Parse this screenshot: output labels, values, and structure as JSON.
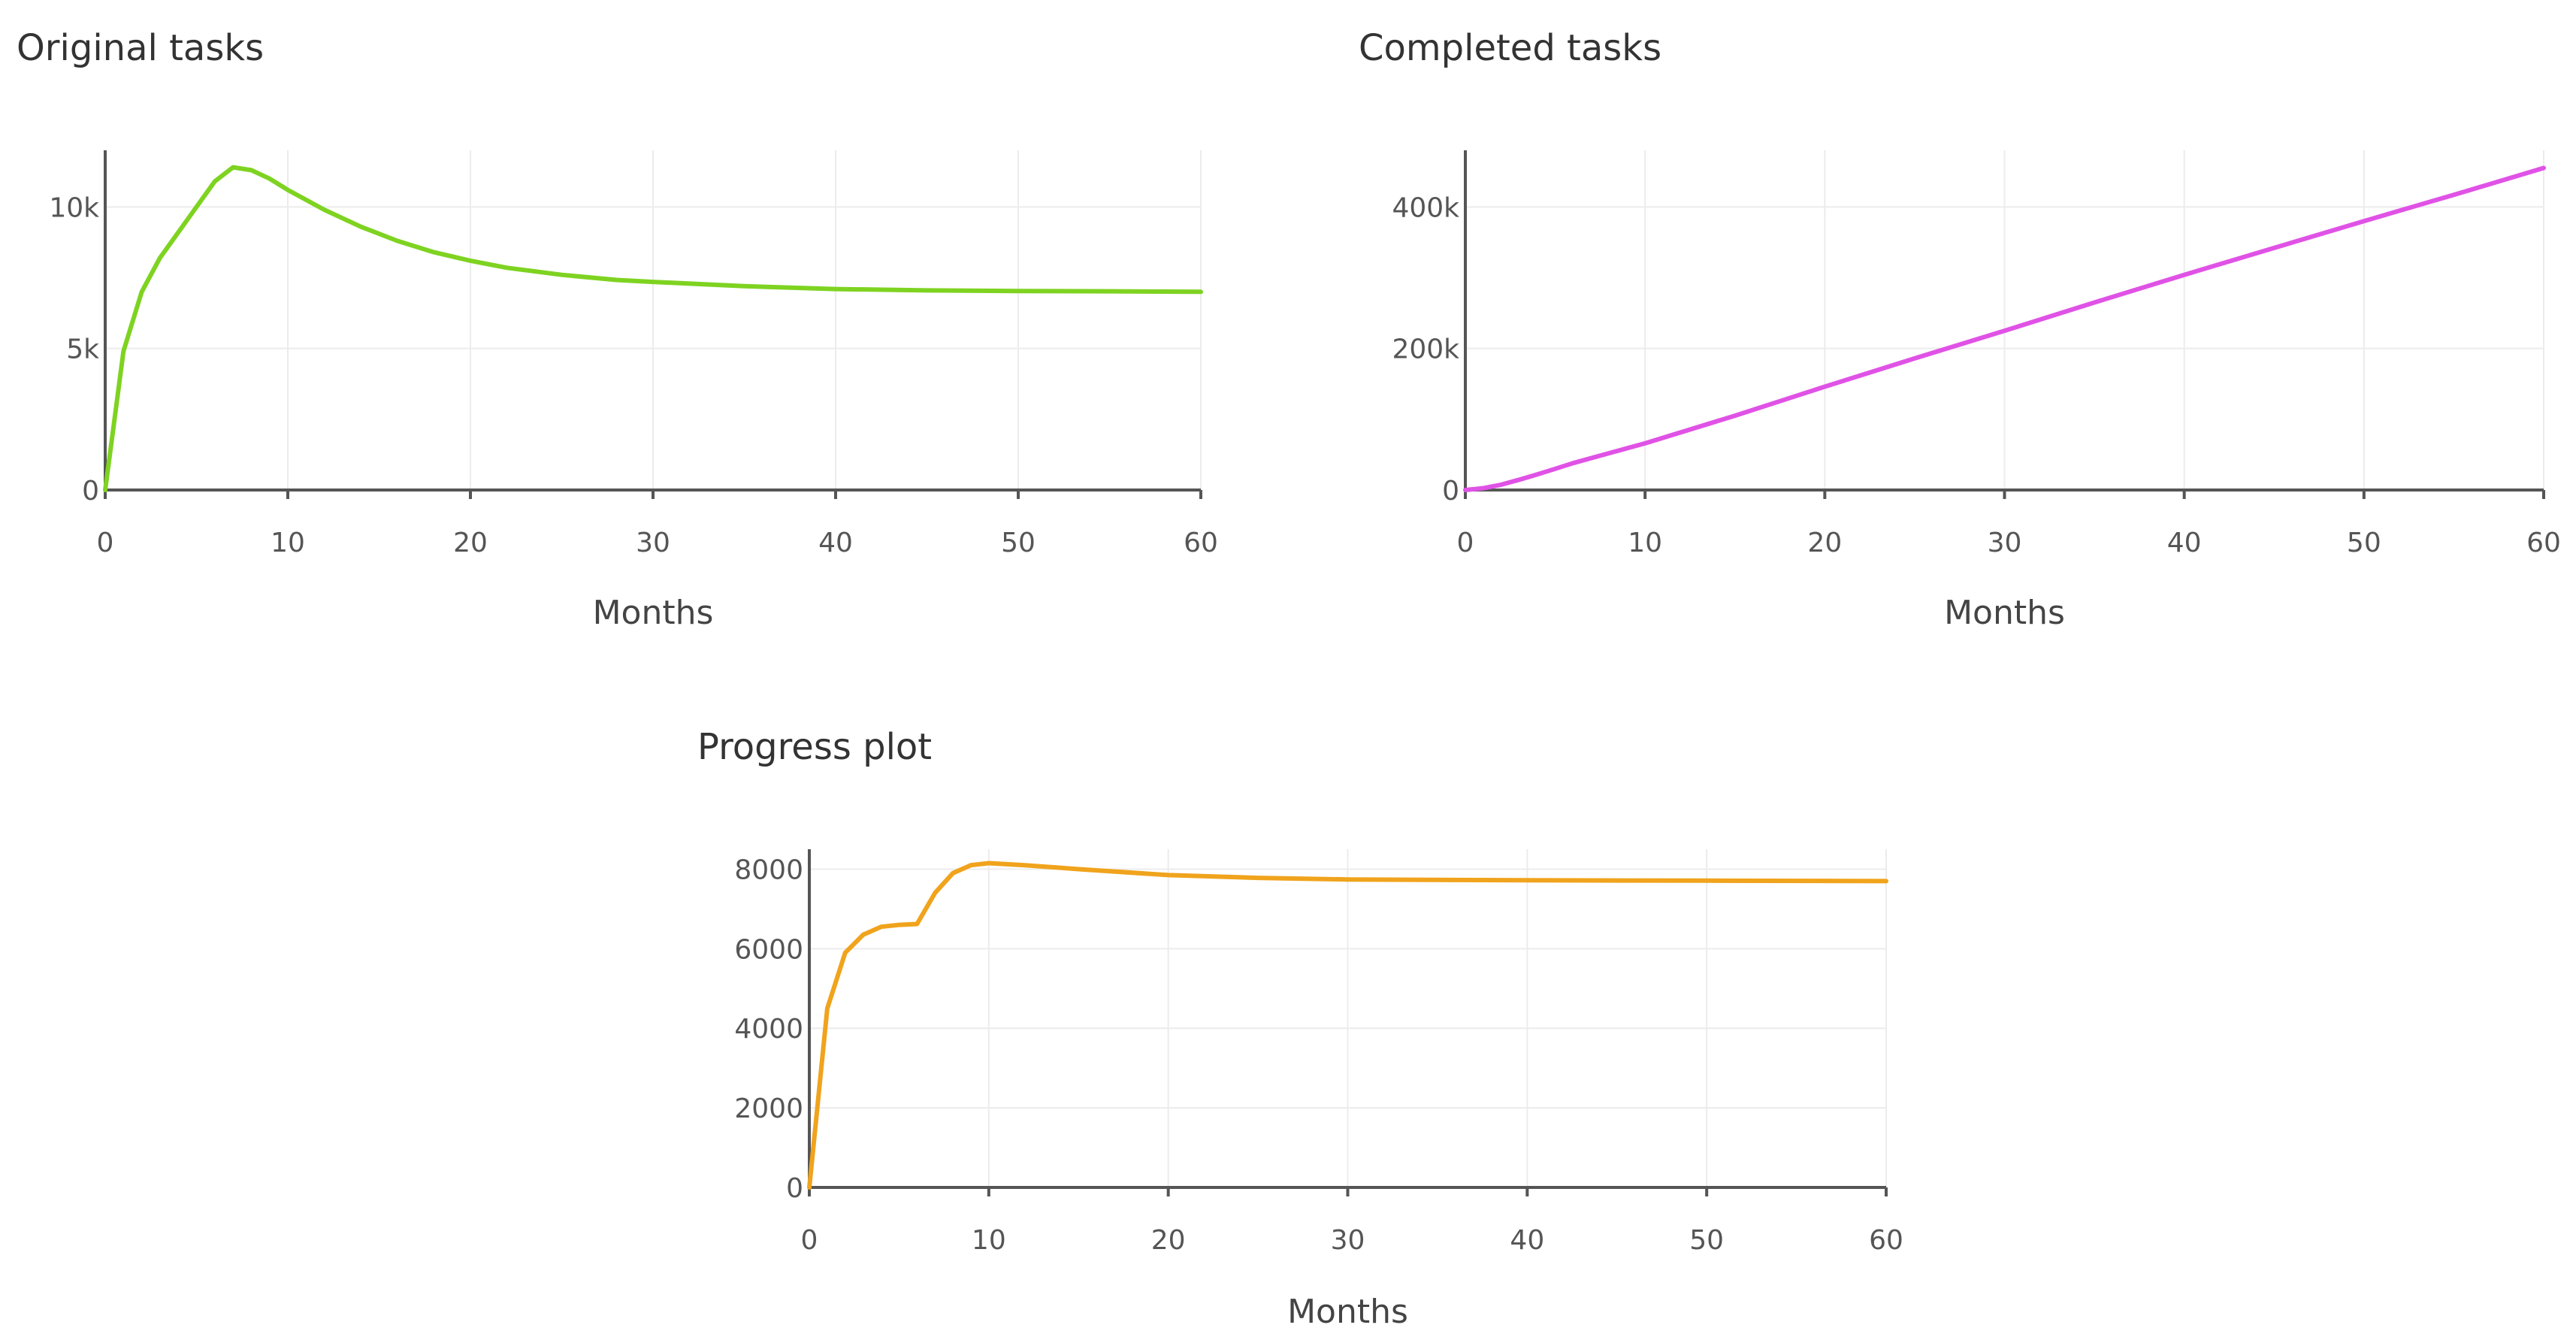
{
  "chart_data": [
    {
      "type": "line",
      "title": "Original tasks",
      "xlabel": "Months",
      "ylabel": "",
      "xlim": [
        0,
        60
      ],
      "ylim": [
        0,
        12000
      ],
      "xticks": [
        0,
        10,
        20,
        30,
        40,
        50,
        60
      ],
      "yticks": [
        0,
        5000,
        10000
      ],
      "yticklabels": [
        "0",
        "5k",
        "10k"
      ],
      "grid": true,
      "color": "#7ed321",
      "series": [
        {
          "x": [
            0,
            1,
            2,
            3,
            4,
            5,
            6,
            7,
            8,
            9,
            10,
            12,
            14,
            16,
            18,
            20,
            22,
            25,
            28,
            30,
            35,
            40,
            45,
            50,
            55,
            60
          ],
          "y": [
            0,
            4900,
            7000,
            8200,
            9100,
            10000,
            10900,
            11400,
            11300,
            11000,
            10600,
            9900,
            9300,
            8800,
            8400,
            8100,
            7850,
            7600,
            7420,
            7350,
            7200,
            7100,
            7050,
            7030,
            7020,
            7000
          ]
        }
      ]
    },
    {
      "type": "line",
      "title": "Completed tasks",
      "xlabel": "Months",
      "ylabel": "",
      "xlim": [
        0,
        60
      ],
      "ylim": [
        0,
        480000
      ],
      "xticks": [
        0,
        10,
        20,
        30,
        40,
        50,
        60
      ],
      "yticks": [
        0,
        200000,
        400000
      ],
      "yticklabels": [
        "0",
        "200k",
        "400k"
      ],
      "grid": true,
      "color": "#e052e6",
      "series": [
        {
          "x": [
            0,
            1,
            2,
            3,
            4,
            5,
            6,
            8,
            10,
            15,
            20,
            25,
            30,
            35,
            40,
            45,
            50,
            55,
            60
          ],
          "y": [
            0,
            2500,
            7500,
            14500,
            22000,
            30000,
            38000,
            52000,
            66000,
            105000,
            146000,
            186000,
            225000,
            265000,
            304000,
            342000,
            380000,
            417000,
            455000
          ]
        }
      ]
    },
    {
      "type": "line",
      "title": "Progress plot",
      "xlabel": "Months",
      "ylabel": "",
      "xlim": [
        0,
        60
      ],
      "ylim": [
        0,
        8500
      ],
      "xticks": [
        0,
        10,
        20,
        30,
        40,
        50,
        60
      ],
      "yticks": [
        0,
        2000,
        4000,
        6000,
        8000
      ],
      "yticklabels": [
        "0",
        "2000",
        "4000",
        "6000",
        "8000"
      ],
      "grid": true,
      "color": "#f0a31c",
      "series": [
        {
          "x": [
            0,
            1,
            2,
            3,
            4,
            5,
            6,
            7,
            8,
            9,
            10,
            12,
            15,
            20,
            25,
            30,
            40,
            50,
            60
          ],
          "y": [
            0,
            4500,
            5900,
            6350,
            6550,
            6600,
            6620,
            7400,
            7900,
            8100,
            8150,
            8100,
            8000,
            7850,
            7780,
            7740,
            7720,
            7710,
            7700
          ]
        }
      ]
    }
  ]
}
